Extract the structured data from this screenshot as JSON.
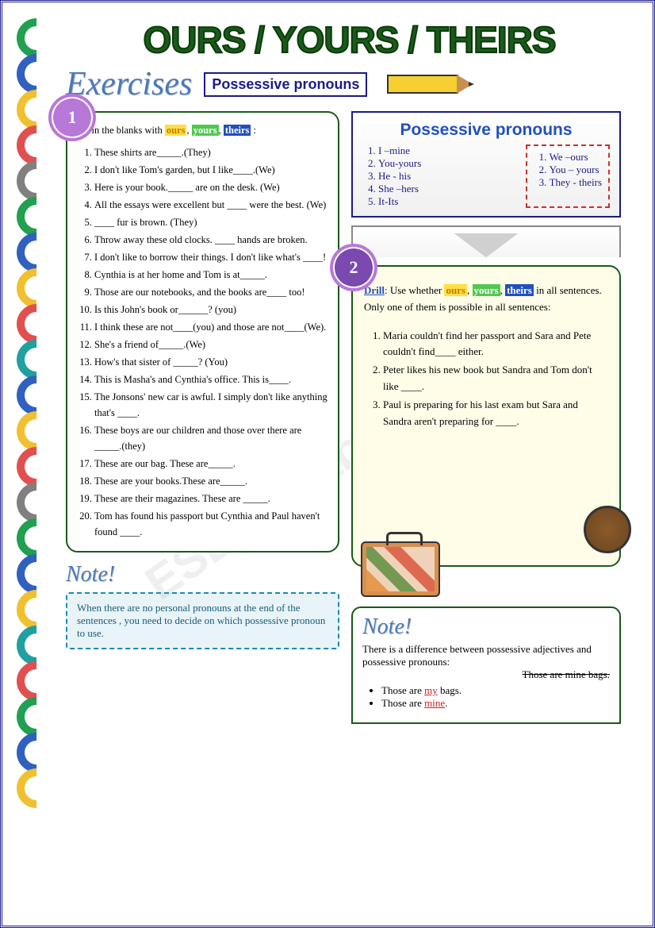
{
  "title": "OURS / YOURS / THEIRS",
  "subtitle": "Exercises",
  "badge": "Possessive pronouns",
  "watermark": "ESLprintables.com",
  "swirlColors": [
    "#20a050",
    "#3060c0",
    "#f0c030",
    "#e05050",
    "#808080",
    "#20a050",
    "#3060c0",
    "#f0c030",
    "#e05050",
    "#20a0a0",
    "#3060c0",
    "#f0c030",
    "#e05050",
    "#808080",
    "#20a050",
    "#3060c0",
    "#f0c030",
    "#20a0a0",
    "#e05050",
    "#20a050",
    "#3060c0",
    "#f0c030"
  ],
  "ex1": {
    "num": "1",
    "intro_a": "Fill in the blanks with ",
    "w1": "ours",
    "w2": "yours",
    "w3": "theirs",
    "intro_b": " :",
    "items": [
      "These shirts are_____.(They)",
      "I don't like Tom's garden, but I like____.(We)",
      "Here is your book._____ are on the desk. (We)",
      "All the essays were excellent but ____ were the best. (We)",
      "____ fur is brown. (They)",
      "Throw away these old clocks. ____ hands are broken.",
      "I don't like to borrow their things. I don't like what's ____!",
      "Cynthia is at her home and Tom is at_____.",
      "Those are our notebooks, and the books are____ too!",
      "Is this John's book or______? (you)",
      "I think these are not____(you) and those are not____(We).",
      "She's a friend of_____.(We)",
      "How's that sister of _____? (You)",
      "This is Masha's and Cynthia's office. This is____.",
      "The Jonsons' new car is awful. I simply don't like anything that's ____.",
      "These boys are our children and those over there are _____.(they)",
      "These are our bag. These are_____.",
      "These are your books.These are_____.",
      "These are their magazines. These are _____.",
      "Tom has found his passport but Cynthia and Paul haven't found ____."
    ]
  },
  "note1": {
    "h": "Note!",
    "text": "When there are no personal pronouns at the end of the sentences , you need to decide on which possessive pronoun to use."
  },
  "pronouns": {
    "title": "Possessive pronouns",
    "left": [
      "I –mine",
      "You-yours",
      "He - his",
      "She –hers",
      "It-Its"
    ],
    "right": [
      "We –ours",
      "You – yours",
      "They - theirs"
    ]
  },
  "ex2": {
    "num": "2",
    "drill": "Drill",
    "intro_a": ": Use whether ",
    "w1": "ours",
    "w2": "yours",
    "w3": "theirs",
    "intro_b": " in all sentences. Only one of them is possible in all sentences:",
    "items": [
      "Maria couldn't find her passport and Sara and Pete couldn't find____ either.",
      "Peter likes his new book but Sandra and Tom don't like ____.",
      "Paul is preparing for his last exam but Sara and Sandra aren't preparing for ____."
    ]
  },
  "note2": {
    "h": "Note!",
    "text": "There is a difference between possessive adjectives and possessive pronouns:",
    "strike": "Those are mine bags.",
    "b1a": "Those are ",
    "b1b": "my",
    "b1c": " bags.",
    "b2a": "Those are ",
    "b2b": "mine",
    "b2c": "."
  }
}
